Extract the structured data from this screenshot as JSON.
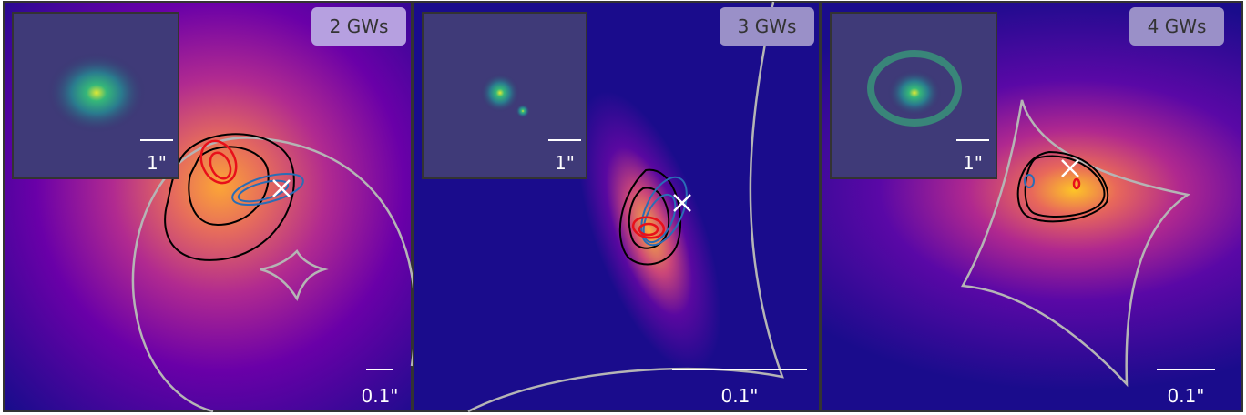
{
  "panels": [
    {
      "label": "2 GWs",
      "inset_scale": "1\"",
      "scale": "0.1\""
    },
    {
      "label": "3 GWs",
      "inset_scale": "1\"",
      "scale": "0.1\""
    },
    {
      "label": "4 GWs",
      "inset_scale": "1\"",
      "scale": "0.1\""
    }
  ]
}
